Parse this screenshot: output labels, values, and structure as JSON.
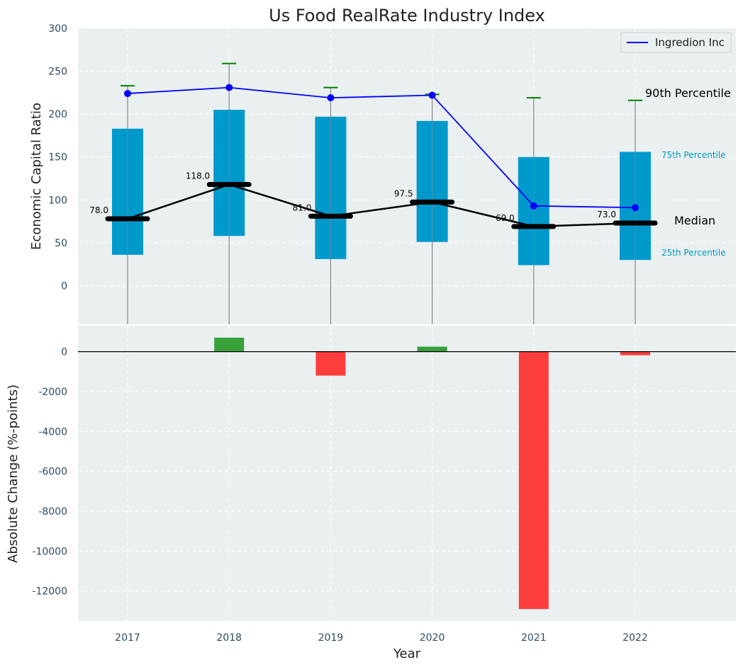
{
  "chart_data": [
    {
      "type": "box",
      "title": "Us Food RealRate Industry Index",
      "ylabel": "Economic Capital Ratio",
      "ylim": [
        -45,
        300
      ],
      "yticks": [
        0,
        50,
        100,
        150,
        200,
        250,
        300
      ],
      "categories": [
        "2017",
        "2018",
        "2019",
        "2020",
        "2021",
        "2022"
      ],
      "p25": [
        36,
        58,
        31,
        51,
        24,
        30
      ],
      "p75": [
        183,
        205,
        197,
        192,
        150,
        156
      ],
      "p90": [
        233,
        259,
        231,
        223,
        219,
        216
      ],
      "median": [
        78.0,
        118.0,
        81.0,
        97.5,
        69.0,
        73.0
      ],
      "median_labels": [
        "78.0",
        "118.0",
        "81.0",
        "97.5",
        "69.0",
        "73.0"
      ],
      "series": [
        {
          "name": "Ingredion Inc",
          "values": [
            224,
            231,
            219,
            222,
            93,
            91
          ],
          "color": "#0000ff"
        }
      ],
      "annotations": {
        "p90": "90th Percentile",
        "p75": "75th Percentile",
        "median": "Median",
        "p25": "25th Percentile"
      },
      "legend": "top-right",
      "grid": true,
      "colors": {
        "box": "#0099cc",
        "median": "#000000",
        "whisker": "#888888",
        "cap": "#008000",
        "background": "#eaeff0"
      }
    },
    {
      "type": "bar",
      "xlabel": "Year",
      "ylabel": "Absolute Change (%-points)",
      "ylim": [
        -13500,
        1300
      ],
      "yticks": [
        0,
        -2000,
        -4000,
        -6000,
        -8000,
        -10000,
        -12000
      ],
      "categories": [
        "2017",
        "2018",
        "2019",
        "2020",
        "2021",
        "2022"
      ],
      "values": [
        0,
        700,
        -1200,
        250,
        -12900,
        -180
      ],
      "grid": true,
      "colors": {
        "positive": "#2e9b2e",
        "negative": "#ff3333"
      }
    }
  ]
}
